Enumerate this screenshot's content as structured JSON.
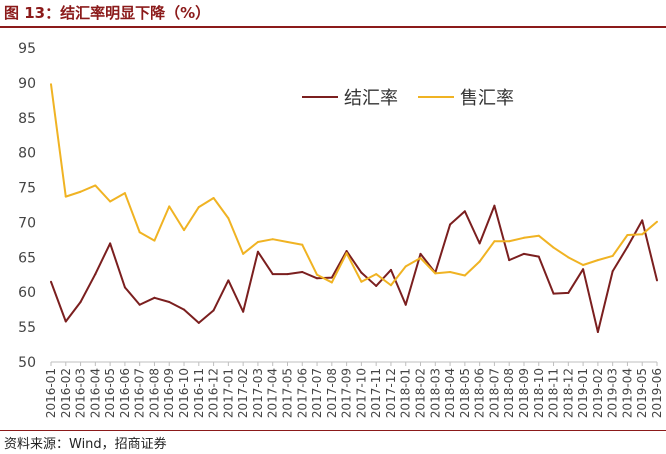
{
  "header": {
    "title": "图 13：结汇率明显下降（%）"
  },
  "footer": {
    "source": "资料来源：Wind，招商证券"
  },
  "chart_data": {
    "type": "line",
    "title": "图 13：结汇率明显下降（%）",
    "xlabel": "",
    "ylabel": "",
    "ylim": [
      50,
      95
    ],
    "yticks": [
      50,
      55,
      60,
      65,
      70,
      75,
      80,
      85,
      90,
      95
    ],
    "grid": false,
    "legend": "top-right",
    "categories": [
      "2016-01",
      "2016-02",
      "2016-03",
      "2016-04",
      "2016-05",
      "2016-06",
      "2016-07",
      "2016-08",
      "2016-09",
      "2016-10",
      "2016-11",
      "2016-12",
      "2017-01",
      "2017-02",
      "2017-03",
      "2017-04",
      "2017-05",
      "2017-06",
      "2017-07",
      "2017-08",
      "2017-09",
      "2017-10",
      "2017-11",
      "2017-12",
      "2018-01",
      "2018-02",
      "2018-03",
      "2018-04",
      "2018-05",
      "2018-06",
      "2018-07",
      "2018-08",
      "2018-09",
      "2018-10",
      "2018-11",
      "2018-12",
      "2019-01",
      "2019-02",
      "2019-03",
      "2019-04",
      "2019-05",
      "2019-06"
    ],
    "series": [
      {
        "name": "结汇率",
        "color": "#7b1f1f",
        "values": [
          61.5,
          55.8,
          58.6,
          62.6,
          67.0,
          60.7,
          58.2,
          59.2,
          58.6,
          57.5,
          55.6,
          57.4,
          61.7,
          57.2,
          65.8,
          62.6,
          62.6,
          62.9,
          62.0,
          62.1,
          65.9,
          62.8,
          60.9,
          63.2,
          58.2,
          65.5,
          62.8,
          69.7,
          71.6,
          67.0,
          72.4,
          64.6,
          65.5,
          65.1,
          59.8,
          59.9,
          63.3,
          54.3,
          63.0,
          66.5,
          70.3,
          61.7
        ]
      },
      {
        "name": "售汇率",
        "color": "#f0b323",
        "values": [
          89.8,
          73.7,
          74.4,
          75.3,
          73.0,
          74.2,
          68.6,
          67.4,
          72.3,
          68.9,
          72.2,
          73.5,
          70.6,
          65.5,
          67.2,
          67.6,
          67.2,
          66.8,
          62.5,
          61.4,
          65.6,
          61.5,
          62.6,
          61.0,
          63.7,
          64.9,
          62.7,
          62.9,
          62.4,
          64.4,
          67.3,
          67.3,
          67.8,
          68.1,
          66.4,
          65.0,
          63.9,
          64.6,
          65.2,
          68.2,
          68.3,
          70.1
        ]
      }
    ]
  }
}
